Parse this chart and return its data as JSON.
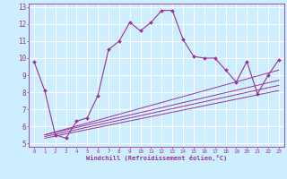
{
  "xlabel": "Windchill (Refroidissement éolien,°C)",
  "background_color": "#cceeff",
  "grid_color": "#ffffff",
  "line_color": "#993399",
  "xlim": [
    -0.5,
    23.5
  ],
  "ylim": [
    4.8,
    13.2
  ],
  "xticks": [
    0,
    1,
    2,
    3,
    4,
    5,
    6,
    7,
    8,
    9,
    10,
    11,
    12,
    13,
    14,
    15,
    16,
    17,
    18,
    19,
    20,
    21,
    22,
    23
  ],
  "yticks": [
    5,
    6,
    7,
    8,
    9,
    10,
    11,
    12,
    13
  ],
  "main_x": [
    0,
    1,
    2,
    3,
    4,
    5,
    6,
    7,
    8,
    9,
    10,
    11,
    12,
    13,
    14,
    15,
    16,
    17,
    18,
    19,
    20,
    21,
    22,
    23
  ],
  "main_y": [
    9.8,
    8.1,
    5.5,
    5.3,
    6.3,
    6.5,
    7.8,
    10.5,
    11.0,
    12.1,
    11.6,
    12.1,
    12.8,
    12.8,
    11.1,
    10.1,
    10.0,
    10.0,
    9.3,
    8.6,
    9.8,
    7.9,
    9.0,
    9.9
  ],
  "line1_x": [
    1,
    23
  ],
  "line1_y": [
    5.5,
    8.7
  ],
  "line2_x": [
    1,
    23
  ],
  "line2_y": [
    5.4,
    8.4
  ],
  "line3_x": [
    1,
    23
  ],
  "line3_y": [
    5.3,
    8.1
  ],
  "line4_x": [
    1,
    23
  ],
  "line4_y": [
    5.5,
    9.3
  ]
}
